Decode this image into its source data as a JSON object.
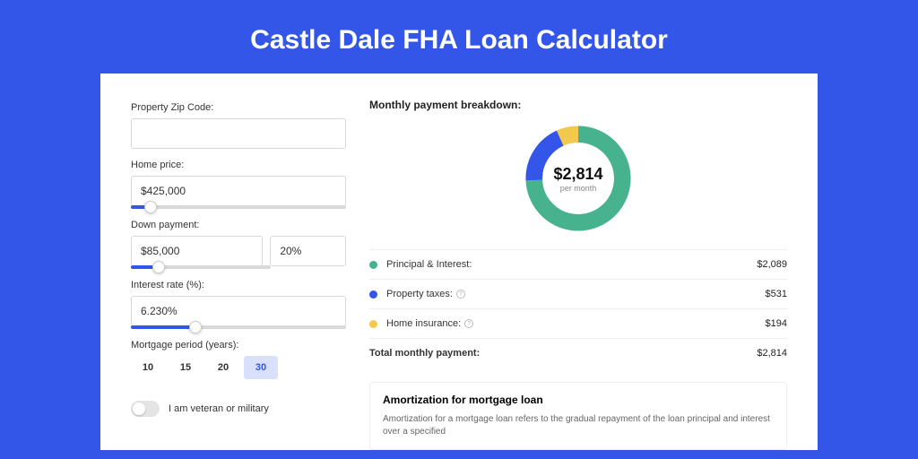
{
  "page": {
    "title": "Castle Dale FHA Loan Calculator",
    "background_color": "#3356e8"
  },
  "form": {
    "zip": {
      "label": "Property Zip Code:",
      "value": ""
    },
    "home_price": {
      "label": "Home price:",
      "value": "$425,000",
      "slider_pct": 9
    },
    "down_payment": {
      "label": "Down payment:",
      "amount": "$85,000",
      "percent": "20%",
      "slider_pct": 20
    },
    "interest": {
      "label": "Interest rate (%):",
      "value": "6.230%",
      "slider_pct": 30
    },
    "period": {
      "label": "Mortgage period (years):",
      "options": [
        "10",
        "15",
        "20",
        "30"
      ],
      "selected": "30"
    },
    "veteran": {
      "label": "I am veteran or military",
      "checked": false
    }
  },
  "breakdown": {
    "title": "Monthly payment breakdown:",
    "center_value": "$2,814",
    "center_sub": "per month",
    "items": [
      {
        "label": "Principal & Interest:",
        "amount": "$2,089",
        "color": "#47b28e",
        "pct": 74.2,
        "info": false
      },
      {
        "label": "Property taxes:",
        "amount": "$531",
        "color": "#3356e8",
        "pct": 18.9,
        "info": true
      },
      {
        "label": "Home insurance:",
        "amount": "$194",
        "color": "#f2c94c",
        "pct": 6.9,
        "info": true
      }
    ],
    "total_label": "Total monthly payment:",
    "total_amount": "$2,814"
  },
  "amortization": {
    "title": "Amortization for mortgage loan",
    "text": "Amortization for a mortgage loan refers to the gradual repayment of the loan principal and interest over a specified"
  }
}
